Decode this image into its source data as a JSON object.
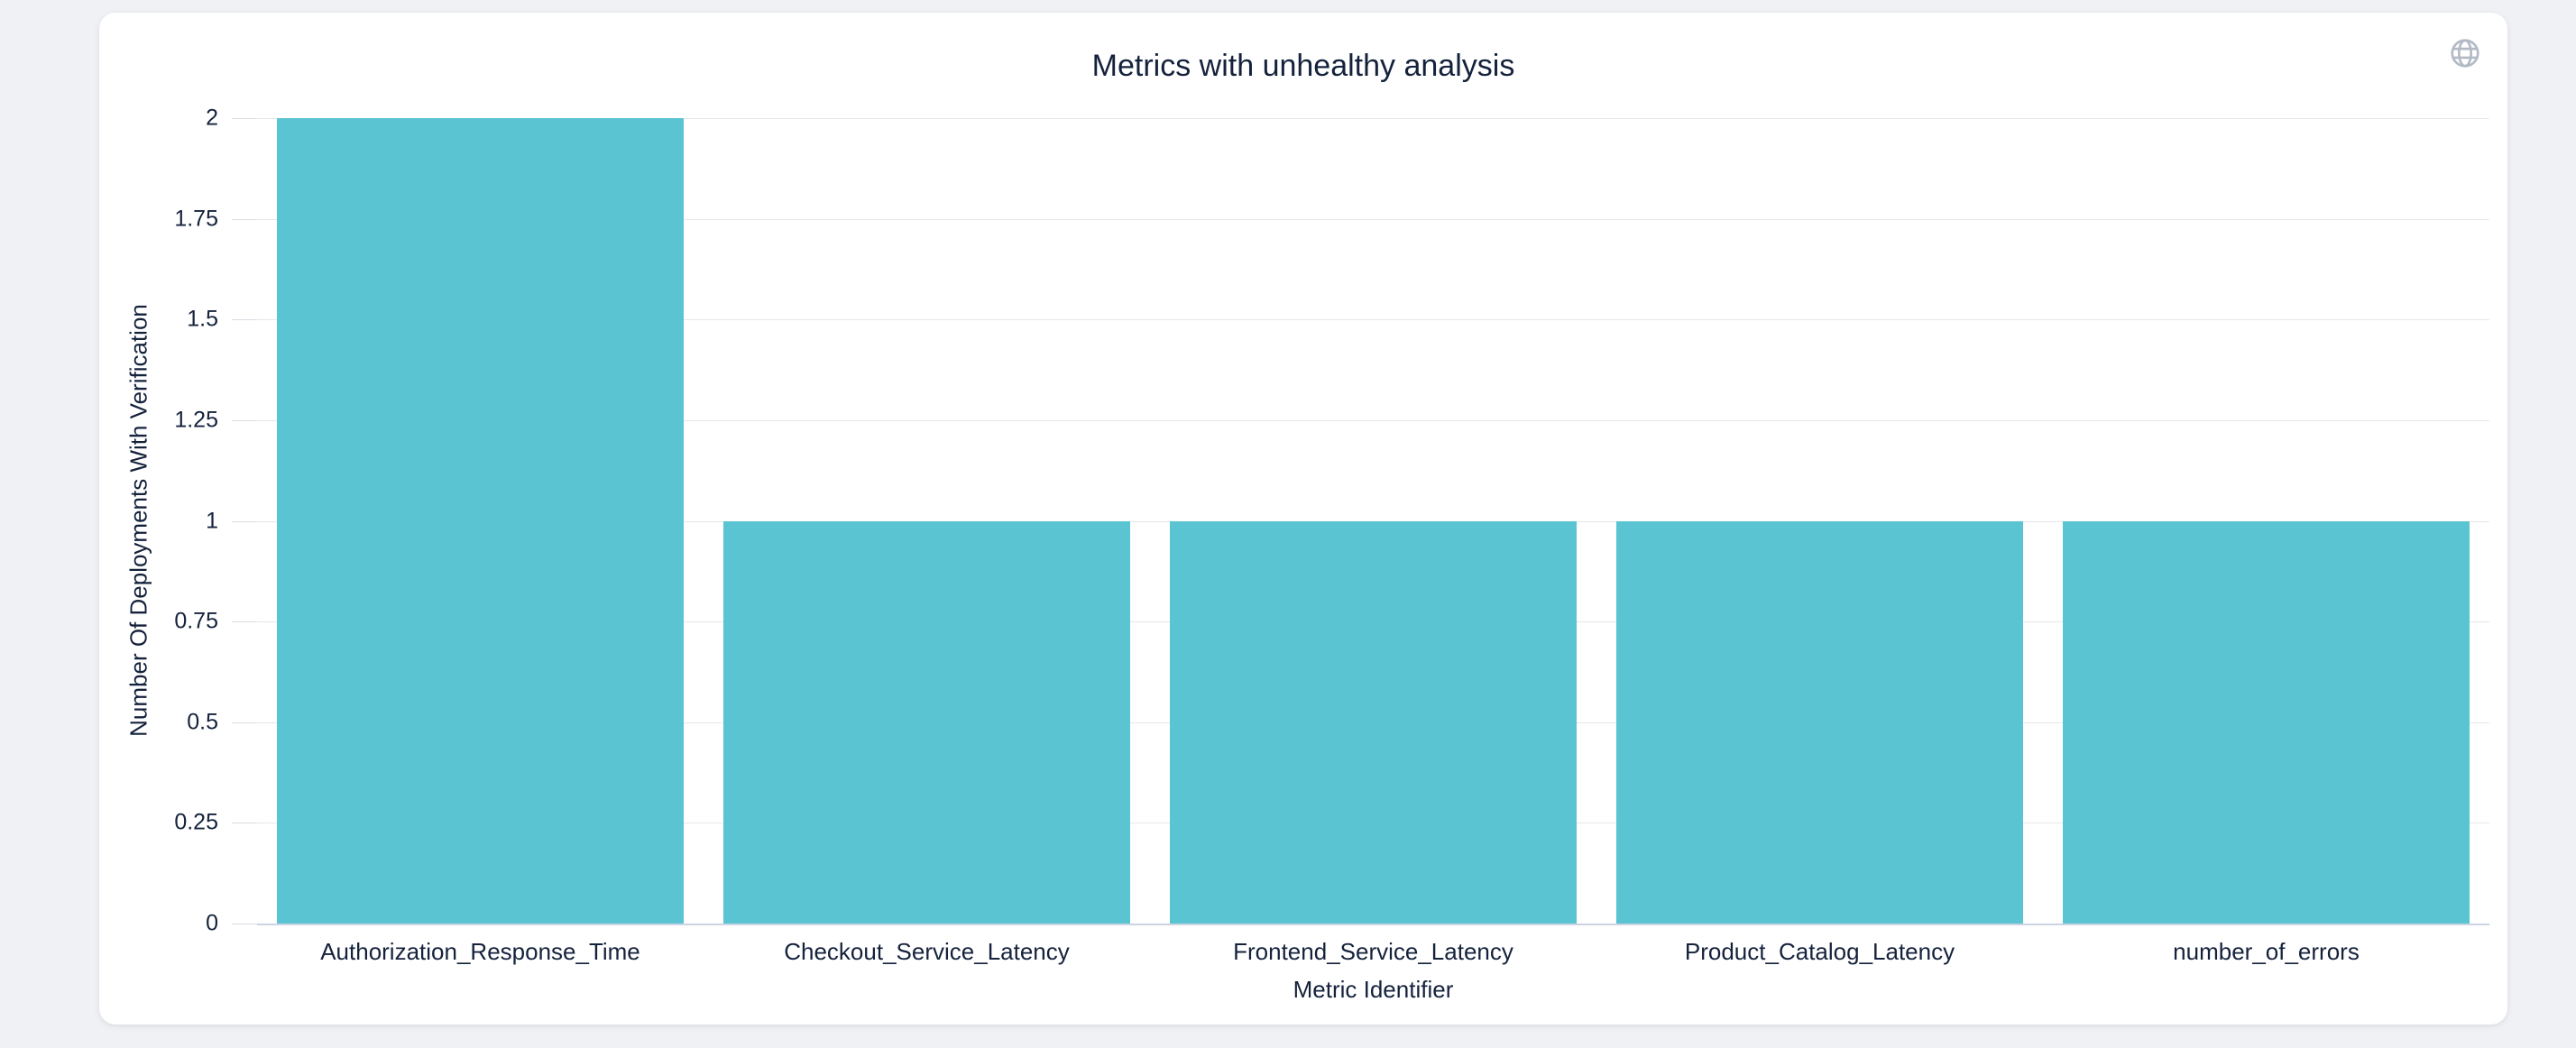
{
  "page": {
    "background": "#eff1f4"
  },
  "card": {
    "background": "#ffffff"
  },
  "header": {
    "title": "Metrics with unhealthy analysis"
  },
  "toolbox": {
    "globe_icon": {
      "name": "globe-icon",
      "color": "#b3bac6"
    }
  },
  "chart_data": {
    "type": "bar",
    "title": "Metrics with unhealthy analysis",
    "categories": [
      "Authorization_Response_Time",
      "Checkout_Service_Latency",
      "Frontend_Service_Latency",
      "Product_Catalog_Latency",
      "number_of_errors"
    ],
    "values": [
      2,
      1,
      1,
      1,
      1
    ],
    "xlabel": "Metric Identifier",
    "ylabel": "Number Of Deployments With Verification",
    "ylim": [
      0,
      2
    ],
    "yticks": [
      0,
      0.25,
      0.5,
      0.75,
      1,
      1.25,
      1.5,
      1.75,
      2
    ],
    "ytick_labels": [
      "0",
      "0.25",
      "0.5",
      "0.75",
      "1",
      "1.25",
      "1.5",
      "1.75",
      "2"
    ],
    "bar_color": "#5ac4d2",
    "grid": true,
    "gridline_color": "#e7e7ea",
    "baseline_color": "#ccd3e2",
    "text_color": "#15223c",
    "legend": false,
    "legend_position": "none"
  }
}
